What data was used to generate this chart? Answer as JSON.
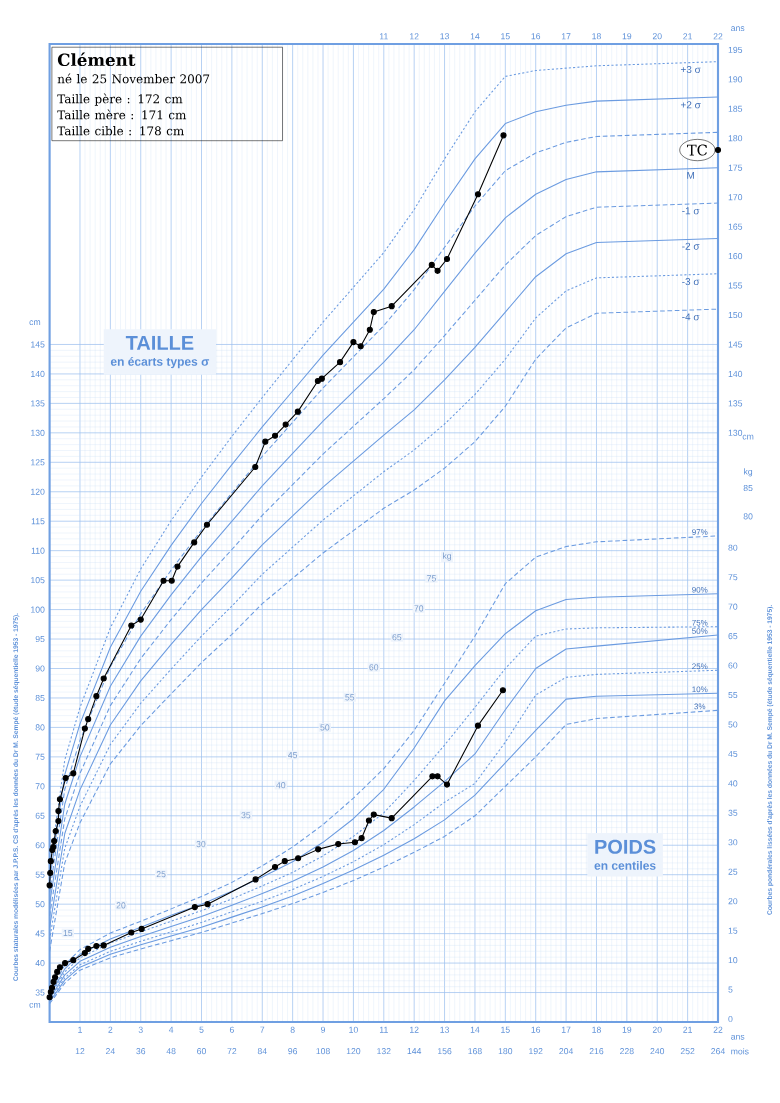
{
  "chart_data": {
    "type": "line",
    "title": "Clément",
    "subtitle": "né le 25 November 2007",
    "xlabel": "ans",
    "x2label": "ans",
    "ylabel": "cm",
    "y2label": "kg",
    "y3label": "cm",
    "xlim": [
      0,
      22
    ],
    "xticks": [
      1,
      2,
      3,
      4,
      5,
      6,
      7,
      8,
      9,
      10,
      11,
      12,
      13,
      14,
      15,
      16,
      17,
      18,
      19,
      20,
      21,
      22
    ],
    "x2lim": [
      0,
      22
    ],
    "x2ticks": [
      11,
      12,
      13,
      14,
      15,
      16,
      17,
      18,
      19,
      20,
      21,
      22
    ],
    "ylim": [
      30,
      196
    ],
    "yticks": [
      35,
      40,
      45,
      50,
      55,
      60,
      65,
      70,
      75,
      80,
      85,
      90,
      95,
      100,
      105,
      110,
      115,
      120,
      125,
      130,
      135,
      140,
      145
    ],
    "y2lim": [
      -0.5,
      165.5
    ],
    "y2ticks": [
      0,
      5,
      10,
      15,
      20,
      25,
      30,
      35,
      40,
      45,
      50,
      55,
      60,
      65,
      70,
      75,
      80
    ],
    "y3lim": [
      30,
      196
    ],
    "y3ticks": [
      130,
      135,
      140,
      145,
      150,
      155,
      160,
      165,
      170,
      175,
      180,
      185,
      190,
      195
    ],
    "grid": true,
    "x": [
      0,
      0.5,
      1,
      2,
      3,
      4,
      5,
      6,
      7,
      8,
      9,
      10,
      11,
      12,
      13,
      14,
      15,
      16,
      17,
      18,
      22
    ],
    "series": [
      {
        "name": "+3 σ",
        "color": "#6b9be0",
        "line_style": "dotted",
        "marker": "none",
        "values": [
          56,
          74.5,
          83.4,
          96.9,
          106.9,
          115.1,
          122.5,
          129.4,
          136,
          142.4,
          148.8,
          154.7,
          160.6,
          167.9,
          176.5,
          184.5,
          190.5,
          191.5,
          191.9,
          192.3,
          193
        ]
      },
      {
        "name": "+2 σ",
        "color": "#6b9be0",
        "line_style": "solid",
        "marker": "none",
        "values": [
          54,
          72,
          80.6,
          93.6,
          103.1,
          110.9,
          118,
          124.6,
          131,
          137.1,
          143.2,
          148.8,
          154.4,
          161.1,
          169,
          176.5,
          182.5,
          184.5,
          185.6,
          186.3,
          187
        ]
      },
      {
        "color": "#6b9be0",
        "line_style": "dashed",
        "marker": "none",
        "values": [
          52,
          69.5,
          77.8,
          90.3,
          99.3,
          106.7,
          113.5,
          119.8,
          126,
          131.8,
          137.6,
          142.9,
          148.2,
          154.3,
          161.5,
          168.5,
          174.5,
          177.5,
          179.3,
          180.3,
          181
        ]
      },
      {
        "name": "M",
        "color": "#6b9be0",
        "line_style": "solid",
        "marker": "none",
        "values": [
          50,
          67,
          75,
          87,
          95.5,
          102.5,
          109,
          115,
          121,
          126.5,
          132,
          137,
          142,
          147.5,
          154,
          160.5,
          166.5,
          170.5,
          173,
          174.3,
          175
        ]
      },
      {
        "name": "-1 σ",
        "color": "#6b9be0",
        "line_style": "dashed",
        "marker": "none",
        "values": [
          48,
          64.5,
          72.2,
          83.7,
          91.7,
          98.3,
          104.5,
          110.2,
          116,
          121.2,
          126.4,
          131.1,
          135.8,
          140.7,
          146.5,
          152.5,
          158.5,
          163.5,
          166.7,
          168.3,
          169
        ]
      },
      {
        "name": "-2 σ",
        "color": "#6b9be0",
        "line_style": "solid",
        "marker": "none",
        "values": [
          46,
          62,
          69.4,
          80.4,
          87.9,
          94.1,
          100,
          105.4,
          111,
          115.9,
          120.8,
          125.2,
          129.6,
          133.9,
          139,
          144.5,
          150.5,
          156.5,
          160.4,
          162.3,
          163
        ]
      },
      {
        "name": "-3 σ",
        "color": "#6b9be0",
        "line_style": "dotted",
        "marker": "none",
        "values": [
          44,
          59.5,
          66.6,
          77.1,
          84.1,
          89.9,
          95.5,
          100.6,
          106,
          110.6,
          115.2,
          119.3,
          123.4,
          127.1,
          131.5,
          136.5,
          142.5,
          149.5,
          154.1,
          156.3,
          157
        ]
      },
      {
        "name": "-4 σ",
        "color": "#6b9be0",
        "line_style": "dashed",
        "marker": "none",
        "values": [
          42,
          57,
          63.8,
          73.8,
          80.3,
          85.7,
          91,
          95.8,
          101,
          105.3,
          109.6,
          113.4,
          117.2,
          120.3,
          124,
          128.5,
          134.5,
          142.5,
          147.8,
          150.3,
          151
        ]
      },
      {
        "name": "97%",
        "color": "#6b9be0",
        "line_style": "dashed",
        "marker": "none",
        "axis": "y2",
        "values": [
          4.2,
          9.2,
          11.8,
          14.6,
          16.6,
          18.7,
          20.8,
          23.2,
          26,
          29.2,
          33,
          37.5,
          42.5,
          49,
          57,
          65,
          73.9,
          78.4,
          80.2,
          81,
          82
        ]
      },
      {
        "name": "90%",
        "color": "#6b9be0",
        "line_style": "solid",
        "marker": "none",
        "axis": "y2",
        "values": [
          3.9,
          8.5,
          11,
          13.6,
          15.6,
          17.6,
          19.5,
          21.7,
          24.1,
          26.7,
          30,
          34,
          39,
          46,
          54,
          60,
          65.4,
          69.3,
          71.2,
          71.6,
          72.2
        ]
      },
      {
        "name": "75%",
        "color": "#6b9be0",
        "line_style": "dotted",
        "marker": "none",
        "axis": "y2",
        "values": [
          3.7,
          8,
          10.4,
          12.9,
          14.8,
          16.6,
          18.4,
          20.4,
          22.6,
          24.9,
          27.7,
          31,
          35,
          40.5,
          46.5,
          52.9,
          59.5,
          65,
          66.2,
          66.4,
          66.6
        ]
      },
      {
        "name": "50%",
        "color": "#6b9be0",
        "line_style": "solid",
        "marker": "none",
        "axis": "y2",
        "values": [
          3.4,
          7.5,
          9.8,
          12.2,
          14,
          15.7,
          17.4,
          19.3,
          21.3,
          23.4,
          25.8,
          28.6,
          32,
          36,
          40.3,
          45,
          52.5,
          59.5,
          62.8,
          63.3,
          65.2
        ]
      },
      {
        "name": "25%",
        "color": "#6b9be0",
        "line_style": "dotted",
        "marker": "none",
        "axis": "y2",
        "values": [
          3.1,
          7,
          9.2,
          11.5,
          13.2,
          14.8,
          16.4,
          18.2,
          20,
          22,
          24.2,
          26.7,
          29.6,
          33,
          36.8,
          40,
          47,
          55,
          58,
          58.5,
          59.2
        ]
      },
      {
        "name": "10%",
        "color": "#6b9be0",
        "line_style": "solid",
        "marker": "none",
        "axis": "y2",
        "values": [
          2.9,
          6.6,
          8.8,
          11,
          12.6,
          14.1,
          15.6,
          17.3,
          19,
          20.9,
          23,
          25.3,
          27.8,
          30.6,
          33.8,
          38,
          43.5,
          49,
          54.3,
          54.8,
          55.3
        ]
      },
      {
        "name": "3%",
        "color": "#6b9be0",
        "line_style": "dashed",
        "marker": "none",
        "axis": "y2",
        "values": [
          2.6,
          6.1,
          8.3,
          10.4,
          11.9,
          13.3,
          14.7,
          16.3,
          17.9,
          19.6,
          21.5,
          23.5,
          25.8,
          28.3,
          31,
          34.5,
          39.5,
          44.5,
          50,
          51,
          52.4
        ]
      },
      {
        "color": "#000000",
        "line_style": "solid",
        "marker": "circle",
        "x": [
          0.0,
          0.02,
          0.04,
          0.09,
          0.12,
          0.15,
          0.2,
          0.29,
          0.29,
          0.34,
          0.53,
          0.78,
          1.16,
          1.27,
          1.54,
          1.78,
          2.69,
          3.0,
          3.75,
          4.02,
          4.21,
          4.76,
          5.18,
          6.77,
          7.1,
          7.42,
          7.77,
          8.17,
          8.83,
          8.96,
          9.56,
          10.0,
          10.24,
          10.54,
          10.67,
          11.26,
          12.58,
          12.77,
          13.08,
          14.1,
          14.94
        ],
        "values": [
          53.2,
          55.3,
          57.3,
          59.2,
          59.7,
          60.7,
          62.4,
          64.1,
          65.8,
          67.8,
          71.4,
          72.2,
          79.8,
          81.4,
          85.3,
          88.3,
          97.3,
          98.3,
          104.9,
          104.9,
          107.3,
          111.4,
          114.4,
          124.2,
          128.5,
          129.5,
          131.4,
          133.6,
          138.8,
          139.2,
          142,
          145.4,
          144.7,
          147.5,
          150.5,
          151.5,
          158.5,
          157.5,
          159.5,
          170.5,
          180.5
        ]
      },
      {
        "color": "#000000",
        "line_style": "solid",
        "marker": "circle",
        "axis": "y2",
        "x": [
          0.0,
          0.04,
          0.08,
          0.13,
          0.18,
          0.25,
          0.34,
          0.51,
          0.78,
          1.16,
          1.27,
          1.54,
          1.78,
          2.69,
          3.03,
          4.78,
          5.2,
          6.78,
          7.42,
          7.74,
          8.18,
          8.84,
          9.5,
          10.05,
          10.27,
          10.51,
          10.67,
          11.26,
          12.6,
          12.77,
          13.08,
          14.1,
          14.92
        ],
        "values": [
          3.7,
          4.6,
          5.3,
          6.3,
          7.1,
          8,
          8.8,
          9.5,
          10,
          11.2,
          11.9,
          12.4,
          12.5,
          14.7,
          15.3,
          19,
          19.5,
          23.7,
          25.8,
          26.8,
          27.3,
          28.8,
          29.7,
          30,
          30.7,
          33.7,
          34.7,
          34.1,
          41.2,
          41.2,
          39.8,
          49.8,
          55.8
        ]
      },
      {
        "type": "scatter",
        "color": "#000000",
        "marker": "circle",
        "x": [
          22
        ],
        "values": [
          178
        ]
      }
    ],
    "annotations": [
      "Taille père : 172 cm",
      "Taille mère : 171 cm",
      "Taille cible : 178 cm",
      "TAILLE",
      "en écarts types σ",
      "POIDS",
      "en centiles",
      "Courbes staturales modélisées par J.P.P.S. CS d'après les données du Dr M. Sempé (étude séquentielle 1953 - 1975).",
      "Courbes pondérales lissées d'après les données du Dr M. Sempé (étude séquentielle 1953 - 1975).",
      "cm",
      "mois",
      "80",
      "85",
      {
        "text": "TC",
        "x": 22,
        "y": 178
      },
      {
        "text": "15",
        "x": 0.6,
        "y": 45.1
      },
      {
        "text": "20",
        "x": 2.35,
        "y": 49.8
      },
      {
        "text": "25",
        "x": 3.67,
        "y": 55.1
      },
      {
        "text": "30",
        "x": 4.98,
        "y": 60.2
      },
      {
        "text": "35",
        "x": 6.46,
        "y": 65.1
      },
      {
        "text": "40",
        "x": 7.61,
        "y": 70.2
      },
      {
        "text": "45",
        "x": 8.0,
        "y": 75.3
      },
      {
        "text": "50",
        "x": 9.06,
        "y": 80.0
      },
      {
        "text": "55",
        "x": 9.88,
        "y": 85.1
      },
      {
        "text": "60",
        "x": 10.67,
        "y": 90.2
      },
      {
        "text": "65",
        "x": 11.43,
        "y": 95.3
      },
      {
        "text": "70",
        "x": 12.15,
        "y": 100.2
      },
      {
        "text": "75",
        "x": 12.57,
        "y": 105.3
      },
      {
        "text": "kg",
        "x": 13.08,
        "y": 109.0
      },
      "12",
      "24",
      "36",
      "48",
      "60",
      "72",
      "84",
      "96",
      "108",
      "120",
      "132",
      "144",
      "156",
      "168",
      "180",
      "192",
      "204",
      "216",
      "228",
      "240",
      "252",
      "264"
    ]
  }
}
